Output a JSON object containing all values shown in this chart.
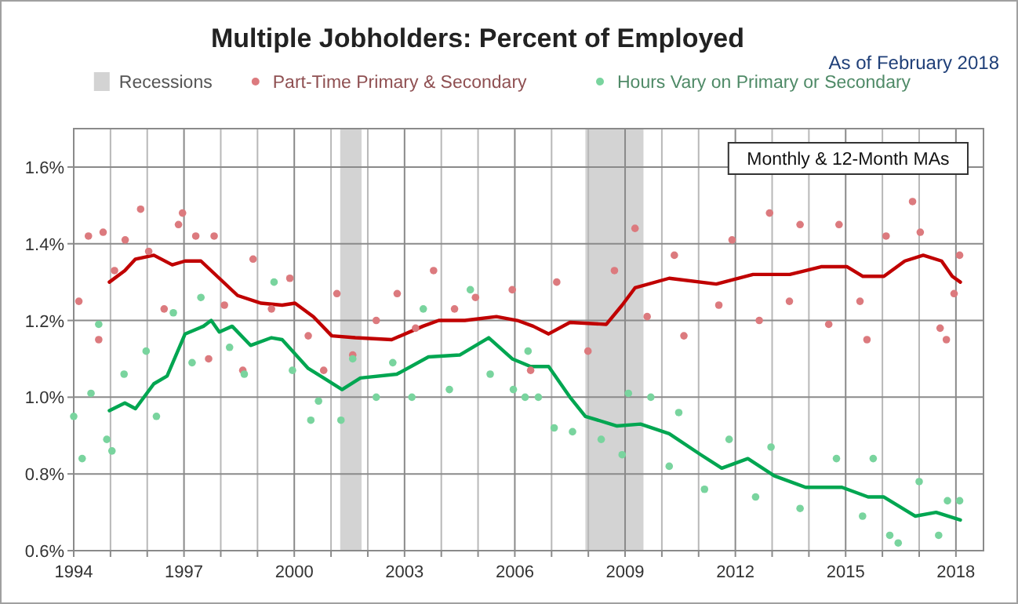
{
  "chart_data": {
    "type": "scatter",
    "title": "Multiple Jobholders: Percent of Employed",
    "subtitle": "As of February 2018",
    "annotations": [
      "Monthly & 12-Month MAs"
    ],
    "xlim": [
      1994,
      2018.75
    ],
    "ylim": [
      0.6,
      1.7
    ],
    "xticks": [
      1994,
      {
        "value": 1995,
        "label": null
      },
      {
        "value": 1996,
        "label": null
      },
      1997,
      {
        "value": 1998,
        "label": null
      },
      {
        "value": 1999,
        "label": null
      },
      2000,
      {
        "value": 2001,
        "label": null
      },
      {
        "value": 2002,
        "label": null
      },
      2003,
      {
        "value": 2004,
        "label": null
      },
      {
        "value": 2005,
        "label": null
      },
      2006,
      {
        "value": 2007,
        "label": null
      },
      {
        "value": 2008,
        "label": null
      },
      2009,
      {
        "value": 2010,
        "label": null
      },
      {
        "value": 2011,
        "label": null
      },
      2012,
      {
        "value": 2013,
        "label": null
      },
      {
        "value": 2014,
        "label": null
      },
      2015,
      {
        "value": 2016,
        "label": null
      },
      {
        "value": 2017,
        "label": null
      },
      2018
    ],
    "yticks": [
      {
        "value": 0.6,
        "label": "0.6%"
      },
      {
        "value": 0.8,
        "label": "0.8%"
      },
      {
        "value": 1.0,
        "label": "1.0%"
      },
      {
        "value": 1.2,
        "label": "1.2%"
      },
      {
        "value": 1.4,
        "label": "1.4%"
      },
      {
        "value": 1.6,
        "label": "1.6%"
      }
    ],
    "grid": true,
    "legend": "top",
    "bands": [
      {
        "axis": "x",
        "from": 2001.25,
        "to": 2001.83,
        "label": "Recessions",
        "color": "#d3d3d3"
      },
      {
        "axis": "x",
        "from": 2007.92,
        "to": 2009.5,
        "color": "#d3d3d3"
      }
    ],
    "series": [
      {
        "name": "Part-Time Primary & Secondary",
        "marker": "circle",
        "color": "#dc7a7e",
        "x": [
          1994.14,
          1994.4,
          1994.68,
          1994.8,
          1995.11,
          1995.4,
          1995.82,
          1996.04,
          1996.46,
          1996.85,
          1996.96,
          1997.32,
          1997.67,
          1997.82,
          1998.1,
          1998.6,
          1998.88,
          1999.38,
          1999.88,
          2000.38,
          2000.8,
          2001.16,
          2001.59,
          2002.23,
          2002.8,
          2003.3,
          2003.79,
          2004.36,
          2004.93,
          2005.93,
          2006.43,
          2007.14,
          2007.99,
          2008.71,
          2009.27,
          2009.6,
          2010.34,
          2010.6,
          2011.55,
          2011.91,
          2012.65,
          2012.93,
          2013.47,
          2013.76,
          2014.54,
          2014.82,
          2015.39,
          2015.58,
          2016.1,
          2016.82,
          2017.03,
          2017.57,
          2017.74,
          2017.95,
          2018.1
        ],
        "values": [
          1.25,
          1.42,
          1.15,
          1.43,
          1.33,
          1.41,
          1.49,
          1.38,
          1.23,
          1.45,
          1.48,
          1.42,
          1.1,
          1.42,
          1.24,
          1.07,
          1.36,
          1.23,
          1.31,
          1.16,
          1.07,
          1.27,
          1.11,
          1.2,
          1.27,
          1.18,
          1.33,
          1.23,
          1.26,
          1.28,
          1.07,
          1.3,
          1.12,
          1.33,
          1.44,
          1.21,
          1.37,
          1.16,
          1.24,
          1.41,
          1.2,
          1.48,
          1.25,
          1.45,
          1.19,
          1.45,
          1.25,
          1.15,
          1.42,
          1.51,
          1.43,
          1.18,
          1.15,
          1.27,
          1.37
        ]
      },
      {
        "name": "Hours Vary on Primary or Secondary",
        "marker": "circle",
        "color": "#79d49e",
        "x": [
          1994.0,
          1994.23,
          1994.47,
          1994.68,
          1994.9,
          1995.04,
          1995.37,
          1995.97,
          1996.25,
          1996.71,
          1997.22,
          1997.46,
          1998.24,
          1998.64,
          1999.45,
          1999.95,
          2000.45,
          2000.66,
          2001.27,
          2001.59,
          2002.23,
          2002.68,
          2003.2,
          2003.51,
          2004.22,
          2004.79,
          2005.33,
          2005.96,
          2006.28,
          2006.36,
          2006.64,
          2007.07,
          2007.57,
          2008.35,
          2008.92,
          2009.09,
          2009.7,
          2010.2,
          2010.46,
          2011.16,
          2011.83,
          2012.55,
          2012.97,
          2013.76,
          2014.75,
          2015.46,
          2015.75,
          2016.2,
          2016.43,
          2017.0,
          2017.53,
          2017.77,
          2018.1
        ],
        "values": [
          0.95,
          0.84,
          1.01,
          1.19,
          0.89,
          0.86,
          1.06,
          1.12,
          0.95,
          1.22,
          1.09,
          1.26,
          1.13,
          1.06,
          1.3,
          1.07,
          0.94,
          0.99,
          0.94,
          1.1,
          1.0,
          1.09,
          1.0,
          1.23,
          1.02,
          1.28,
          1.06,
          1.02,
          1.0,
          1.12,
          1.0,
          0.92,
          0.91,
          0.89,
          0.85,
          1.01,
          1.0,
          0.82,
          0.96,
          0.76,
          0.89,
          0.74,
          0.87,
          0.71,
          0.84,
          0.69,
          0.84,
          0.64,
          0.62,
          0.78,
          0.64,
          0.73,
          0.73
        ]
      },
      {
        "type": "line",
        "marker": "none",
        "color": "#c00000",
        "x": [
          1994.97,
          1995.39,
          1995.68,
          1996.18,
          1996.68,
          1997.03,
          1997.46,
          1997.96,
          1998.46,
          1999.1,
          1999.67,
          2000.02,
          2000.52,
          2001.02,
          2001.66,
          2002.65,
          2003.5,
          2003.93,
          2004.64,
          2005.5,
          2006.07,
          2006.5,
          2006.92,
          2007.5,
          2008.49,
          2008.92,
          2009.27,
          2010.2,
          2011.48,
          2012.48,
          2013.48,
          2014.33,
          2015.04,
          2015.47,
          2016.04,
          2016.61,
          2017.11,
          2017.61,
          2017.9,
          2018.12
        ],
        "values": [
          1.3,
          1.33,
          1.36,
          1.37,
          1.345,
          1.355,
          1.355,
          1.31,
          1.265,
          1.245,
          1.24,
          1.245,
          1.21,
          1.16,
          1.155,
          1.15,
          1.185,
          1.2,
          1.2,
          1.21,
          1.2,
          1.185,
          1.165,
          1.195,
          1.19,
          1.24,
          1.285,
          1.31,
          1.295,
          1.32,
          1.32,
          1.34,
          1.34,
          1.315,
          1.315,
          1.355,
          1.37,
          1.355,
          1.315,
          1.3
        ]
      },
      {
        "type": "line",
        "marker": "none",
        "color": "#00a651",
        "x": [
          1994.97,
          1995.39,
          1995.68,
          1996.18,
          1996.54,
          1997.03,
          1997.53,
          1997.74,
          1997.96,
          1998.31,
          1998.81,
          1999.38,
          1999.67,
          2000.38,
          2000.8,
          2001.3,
          2001.8,
          2002.79,
          2003.65,
          2004.5,
          2005.29,
          2005.93,
          2006.43,
          2006.92,
          2007.5,
          2007.92,
          2008.78,
          2009.42,
          2010.2,
          2011.06,
          2011.63,
          2012.34,
          2013.06,
          2013.91,
          2014.9,
          2015.61,
          2016.04,
          2016.89,
          2017.46,
          2018.12
        ],
        "values": [
          0.965,
          0.985,
          0.97,
          1.035,
          1.055,
          1.165,
          1.185,
          1.2,
          1.17,
          1.185,
          1.135,
          1.155,
          1.15,
          1.075,
          1.05,
          1.02,
          1.05,
          1.06,
          1.105,
          1.11,
          1.155,
          1.1,
          1.08,
          1.08,
          1.0,
          0.95,
          0.925,
          0.93,
          0.905,
          0.85,
          0.815,
          0.84,
          0.795,
          0.765,
          0.765,
          0.74,
          0.74,
          0.69,
          0.7,
          0.68
        ]
      }
    ]
  }
}
